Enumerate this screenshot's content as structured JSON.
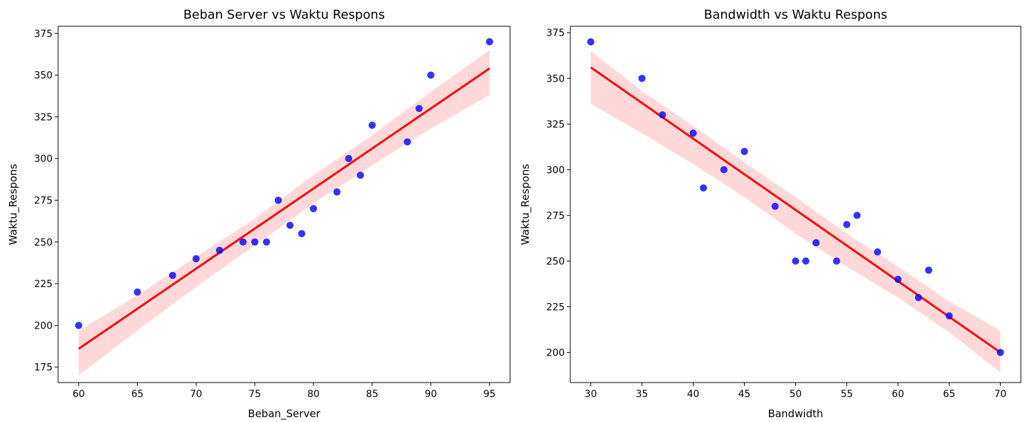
{
  "colors": {
    "points": "#0000ff",
    "regression_line": "#ff0000",
    "confidence_band": "#ff0000"
  },
  "chart_data": [
    {
      "type": "scatter",
      "title": "Beban Server vs Waktu Respons",
      "xlabel": "Beban_Server",
      "ylabel": "Waktu_Respons",
      "xlim": [
        58.25,
        96.75
      ],
      "ylim": [
        165.75,
        379.25
      ],
      "xticks": [
        60,
        65,
        70,
        75,
        80,
        85,
        90,
        95
      ],
      "yticks": [
        175,
        200,
        225,
        250,
        275,
        300,
        325,
        350,
        375
      ],
      "grid": false,
      "points": [
        [
          60,
          200
        ],
        [
          65,
          220
        ],
        [
          68,
          230
        ],
        [
          70,
          240
        ],
        [
          72,
          245
        ],
        [
          74,
          250
        ],
        [
          75,
          250
        ],
        [
          76,
          250
        ],
        [
          77,
          275
        ],
        [
          78,
          260
        ],
        [
          79,
          255
        ],
        [
          80,
          270
        ],
        [
          82,
          280
        ],
        [
          83,
          300
        ],
        [
          84,
          290
        ],
        [
          85,
          320
        ],
        [
          88,
          310
        ],
        [
          89,
          330
        ],
        [
          90,
          350
        ],
        [
          95,
          370
        ]
      ],
      "regression": {
        "x": [
          60,
          95
        ],
        "y": [
          186,
          354
        ]
      },
      "confidence_band": {
        "x": [
          60,
          65,
          70,
          75,
          80,
          85,
          90,
          95
        ],
        "lower": [
          170,
          197,
          223,
          248,
          273,
          296,
          318,
          338
        ],
        "upper": [
          197,
          218,
          241,
          264,
          290,
          314,
          340,
          365
        ]
      }
    },
    {
      "type": "scatter",
      "title": "Bandwidth vs Waktu Respons",
      "xlabel": "Bandwidth",
      "ylabel": "Waktu_Respons",
      "xlim": [
        28.0,
        72.0
      ],
      "ylim": [
        183.5,
        378.5
      ],
      "xticks": [
        30,
        35,
        40,
        45,
        50,
        55,
        60,
        65,
        70
      ],
      "yticks": [
        200,
        225,
        250,
        275,
        300,
        325,
        350,
        375
      ],
      "grid": false,
      "points": [
        [
          30,
          370
        ],
        [
          35,
          350
        ],
        [
          37,
          330
        ],
        [
          40,
          320
        ],
        [
          41,
          290
        ],
        [
          43,
          300
        ],
        [
          45,
          310
        ],
        [
          48,
          280
        ],
        [
          50,
          250
        ],
        [
          51,
          250
        ],
        [
          52,
          260
        ],
        [
          54,
          250
        ],
        [
          55,
          270
        ],
        [
          56,
          275
        ],
        [
          58,
          255
        ],
        [
          60,
          240
        ],
        [
          62,
          230
        ],
        [
          63,
          245
        ],
        [
          65,
          220
        ],
        [
          70,
          200
        ]
      ],
      "regression": {
        "x": [
          30,
          70
        ],
        "y": [
          356,
          200
        ]
      },
      "confidence_band": {
        "x": [
          30,
          35,
          40,
          45,
          50,
          55,
          60,
          65,
          70
        ],
        "lower": [
          336,
          320,
          303,
          285,
          265,
          247,
          230,
          211,
          189
        ],
        "upper": [
          365,
          343,
          324,
          304,
          285,
          265,
          247,
          228,
          212
        ]
      }
    }
  ]
}
